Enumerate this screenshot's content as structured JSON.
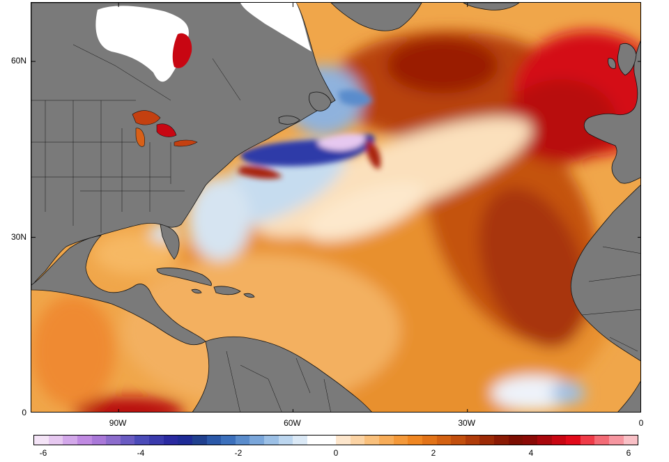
{
  "map": {
    "lat_labels": [
      {
        "text": "60N",
        "lat": 60
      },
      {
        "text": "30N",
        "lat": 30
      },
      {
        "text": "0",
        "lat": 0
      }
    ],
    "lon_labels": [
      {
        "text": "90W",
        "lon": -90
      },
      {
        "text": "60W",
        "lon": -60
      },
      {
        "text": "30W",
        "lon": -30
      },
      {
        "text": "0",
        "lon": 0
      }
    ],
    "extent": {
      "lon_min": -105,
      "lon_max": 0,
      "lat_min": 0,
      "lat_max": 70
    },
    "land_color": "#7a7a7a",
    "ice_color": "#ffffff"
  },
  "colorbar": {
    "min": -6,
    "max": 6,
    "labels": [
      "-6",
      "-4",
      "-2",
      "0",
      "2",
      "4",
      "6"
    ],
    "colors": [
      "#f4e4f7",
      "#e6c8f0",
      "#d3a8ea",
      "#c08ae2",
      "#a978d8",
      "#8c6ccc",
      "#6a5bc2",
      "#4b4bb8",
      "#3a3aac",
      "#2a2aa0",
      "#1e2b96",
      "#20408f",
      "#2b58a8",
      "#3c70bc",
      "#5a8ccc",
      "#7aa6da",
      "#9cc0e6",
      "#bcd6ef",
      "#dbe9f6",
      "#ffffff",
      "#ffffff",
      "#fde6cc",
      "#fbd3a4",
      "#f9c07c",
      "#f7ac58",
      "#f4993a",
      "#ef8622",
      "#e27318",
      "#d36112",
      "#c24f0e",
      "#b03c0a",
      "#9c2a06",
      "#8a1a04",
      "#7c0e02",
      "#8a0a06",
      "#a8070c",
      "#c80612",
      "#e10a1a",
      "#ef3b48",
      "#f36b76",
      "#f696a0",
      "#f9c0c6"
    ]
  }
}
